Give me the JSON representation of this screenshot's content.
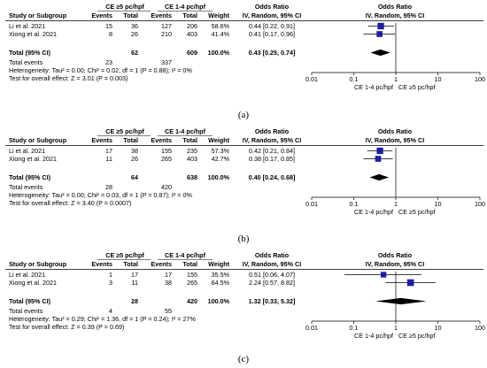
{
  "chart_data": [
    {
      "type": "forest",
      "caption": "(a)",
      "col_headers": {
        "study": "Study or Subgroup",
        "group1": "CE ≥5 pc/hpf",
        "group2": "CE 1-4 pc/hpf",
        "events": "Events",
        "total": "Total",
        "weight": "Weight",
        "or_title": "Odds Ratio",
        "or_sub": "IV, Random, 95% CI",
        "plot_title": "Odds Ratio",
        "plot_sub": "IV, Random, 95% CI"
      },
      "studies": [
        {
          "name": "Li et al. 2021",
          "e1": "15",
          "t1": "36",
          "e2": "127",
          "t2": "206",
          "weight": "58.6%",
          "or_text": "0.44 [0.22, 0.91]",
          "or": 0.44,
          "lo": 0.22,
          "hi": 0.91,
          "w": 58.6
        },
        {
          "name": "Xiong et al. 2021",
          "e1": "8",
          "t1": "26",
          "e2": "210",
          "t2": "403",
          "weight": "41.4%",
          "or_text": "0.41 [0.17, 0.96]",
          "or": 0.41,
          "lo": 0.17,
          "hi": 0.96,
          "w": 41.4
        }
      ],
      "total": {
        "label": "Total (95% CI)",
        "t1": "62",
        "t2": "609",
        "weight": "100.0%",
        "or_text": "0.43 [0.25, 0.74]",
        "or": 0.43,
        "lo": 0.25,
        "hi": 0.74
      },
      "total_events": {
        "label": "Total events",
        "e1": "23",
        "e2": "337"
      },
      "heterogeneity": "Heterogeneity: Tau² = 0.00; Chi² = 0.02, df = 1 (P = 0.88); I² = 0%",
      "overall": "Test for overall effect: Z = 3.01 (P = 0.003)",
      "xscale": "log",
      "xlim": [
        0.01,
        100
      ],
      "ticks": [
        "0.01",
        "0.1",
        "1",
        "10",
        "100"
      ],
      "favours_left": "CE 1-4 pc/hpf",
      "favours_right": "CE ≥5 pc/hpf"
    },
    {
      "type": "forest",
      "caption": "(b)",
      "col_headers": {
        "study": "Study or Subgroup",
        "group1": "CE ≥5 pc/hpf",
        "group2": "CE 1-4 pc/hpf",
        "events": "Events",
        "total": "Total",
        "weight": "Weight",
        "or_title": "Odds Ratio",
        "or_sub": "IV, Random, 95% CI",
        "plot_title": "Odds Ratio",
        "plot_sub": "IV, Random, 95% CI"
      },
      "studies": [
        {
          "name": "Li et al. 2021",
          "e1": "17",
          "t1": "38",
          "e2": "155",
          "t2": "235",
          "weight": "57.3%",
          "or_text": "0.42 [0.21, 0.84]",
          "or": 0.42,
          "lo": 0.21,
          "hi": 0.84,
          "w": 57.3
        },
        {
          "name": "Xiong et al. 2021",
          "e1": "11",
          "t1": "26",
          "e2": "265",
          "t2": "403",
          "weight": "42.7%",
          "or_text": "0.38 [0.17, 0.85]",
          "or": 0.38,
          "lo": 0.17,
          "hi": 0.85,
          "w": 42.7
        }
      ],
      "total": {
        "label": "Total (95% CI)",
        "t1": "64",
        "t2": "638",
        "weight": "100.0%",
        "or_text": "0.40 [0.24, 0.68]",
        "or": 0.4,
        "lo": 0.24,
        "hi": 0.68
      },
      "total_events": {
        "label": "Total events",
        "e1": "28",
        "e2": "420"
      },
      "heterogeneity": "Heterogeneity: Tau² = 0.00; Chi² = 0.03, df = 1 (P = 0.87); I² = 0%",
      "overall": "Test for overall effect: Z = 3.40 (P = 0.0007)",
      "xscale": "log",
      "xlim": [
        0.01,
        100
      ],
      "ticks": [
        "0.01",
        "0.1",
        "1",
        "10",
        "100"
      ],
      "favours_left": "CE 1-4 pc/hpf",
      "favours_right": "CE ≥5 pc/hpf"
    },
    {
      "type": "forest",
      "caption": "(c)",
      "col_headers": {
        "study": "Study or Subgroup",
        "group1": "CE ≥5 pc/hpf",
        "group2": "CE 1-4 pc/hpf",
        "events": "Events",
        "total": "Total",
        "weight": "Weight",
        "or_title": "Odds Ratio",
        "or_sub": "IV, Random, 95% CI",
        "plot_title": "Odds Ratio",
        "plot_sub": "IV, Random, 95% CI"
      },
      "studies": [
        {
          "name": "Li et al. 2021",
          "e1": "1",
          "t1": "17",
          "e2": "17",
          "t2": "155",
          "weight": "35.5%",
          "or_text": "0.51 [0.06, 4.07]",
          "or": 0.51,
          "lo": 0.06,
          "hi": 4.07,
          "w": 35.5
        },
        {
          "name": "Xiong et al. 2021",
          "e1": "3",
          "t1": "11",
          "e2": "38",
          "t2": "265",
          "weight": "64.5%",
          "or_text": "2.24 [0.57, 8.82]",
          "or": 2.24,
          "lo": 0.57,
          "hi": 8.82,
          "w": 64.5
        }
      ],
      "total": {
        "label": "Total (95% CI)",
        "t1": "28",
        "t2": "420",
        "weight": "100.0%",
        "or_text": "1.32 [0.33, 5.32]",
        "or": 1.32,
        "lo": 0.33,
        "hi": 5.32
      },
      "total_events": {
        "label": "Total events",
        "e1": "4",
        "e2": "55"
      },
      "heterogeneity": "Heterogeneity: Tau² = 0.29; Chi² = 1.36, df = 1 (P = 0.24); I² = 27%",
      "overall": "Test for overall effect: Z = 0.39 (P = 0.69)",
      "xscale": "log",
      "xlim": [
        0.01,
        100
      ],
      "ticks": [
        "0.01",
        "0.1",
        "1",
        "10",
        "100"
      ],
      "favours_left": "CE 1-4 pc/hpf",
      "favours_right": "CE ≥5 pc/hpf"
    }
  ]
}
